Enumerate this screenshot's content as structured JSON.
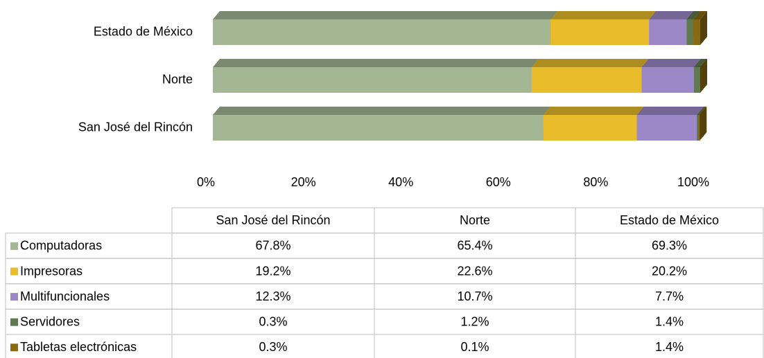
{
  "chart_data": {
    "type": "stacked_bar_3d",
    "orientation": "horizontal",
    "categories": [
      "San José del Rincón",
      "Norte",
      "Estado de México"
    ],
    "series": [
      {
        "name": "Computadoras",
        "color": "#a3b795",
        "values": [
          67.8,
          65.4,
          69.3
        ],
        "value_labels": [
          "67.8%",
          "65.4%",
          "69.3%"
        ]
      },
      {
        "name": "Impresoras",
        "color": "#e8bc2a",
        "values": [
          19.2,
          22.6,
          20.2
        ],
        "value_labels": [
          "19.2%",
          "22.6%",
          "20.2%"
        ]
      },
      {
        "name": "Multifuncionales",
        "color": "#9c88c6",
        "values": [
          12.3,
          10.7,
          7.7
        ],
        "value_labels": [
          "12.3%",
          "10.7%",
          "7.7%"
        ]
      },
      {
        "name": "Servidores",
        "color": "#5f7a4f",
        "values": [
          0.3,
          1.2,
          1.4
        ],
        "value_labels": [
          "0.3%",
          "1.2%",
          "1.4%"
        ]
      },
      {
        "name": "Tabletas electrónicas",
        "color": "#8a6a10",
        "values": [
          0.3,
          0.1,
          1.4
        ],
        "value_labels": [
          "0.3%",
          "0.1%",
          "1.4%"
        ]
      }
    ],
    "xlim": [
      0,
      100
    ],
    "xticks": [
      {
        "value": 0,
        "label": "0%"
      },
      {
        "value": 20,
        "label": "20%"
      },
      {
        "value": 40,
        "label": "40%"
      },
      {
        "value": 60,
        "label": "60%"
      },
      {
        "value": 80,
        "label": "80%"
      },
      {
        "value": 100,
        "label": "100%"
      }
    ],
    "grid": false,
    "data_table": true
  }
}
